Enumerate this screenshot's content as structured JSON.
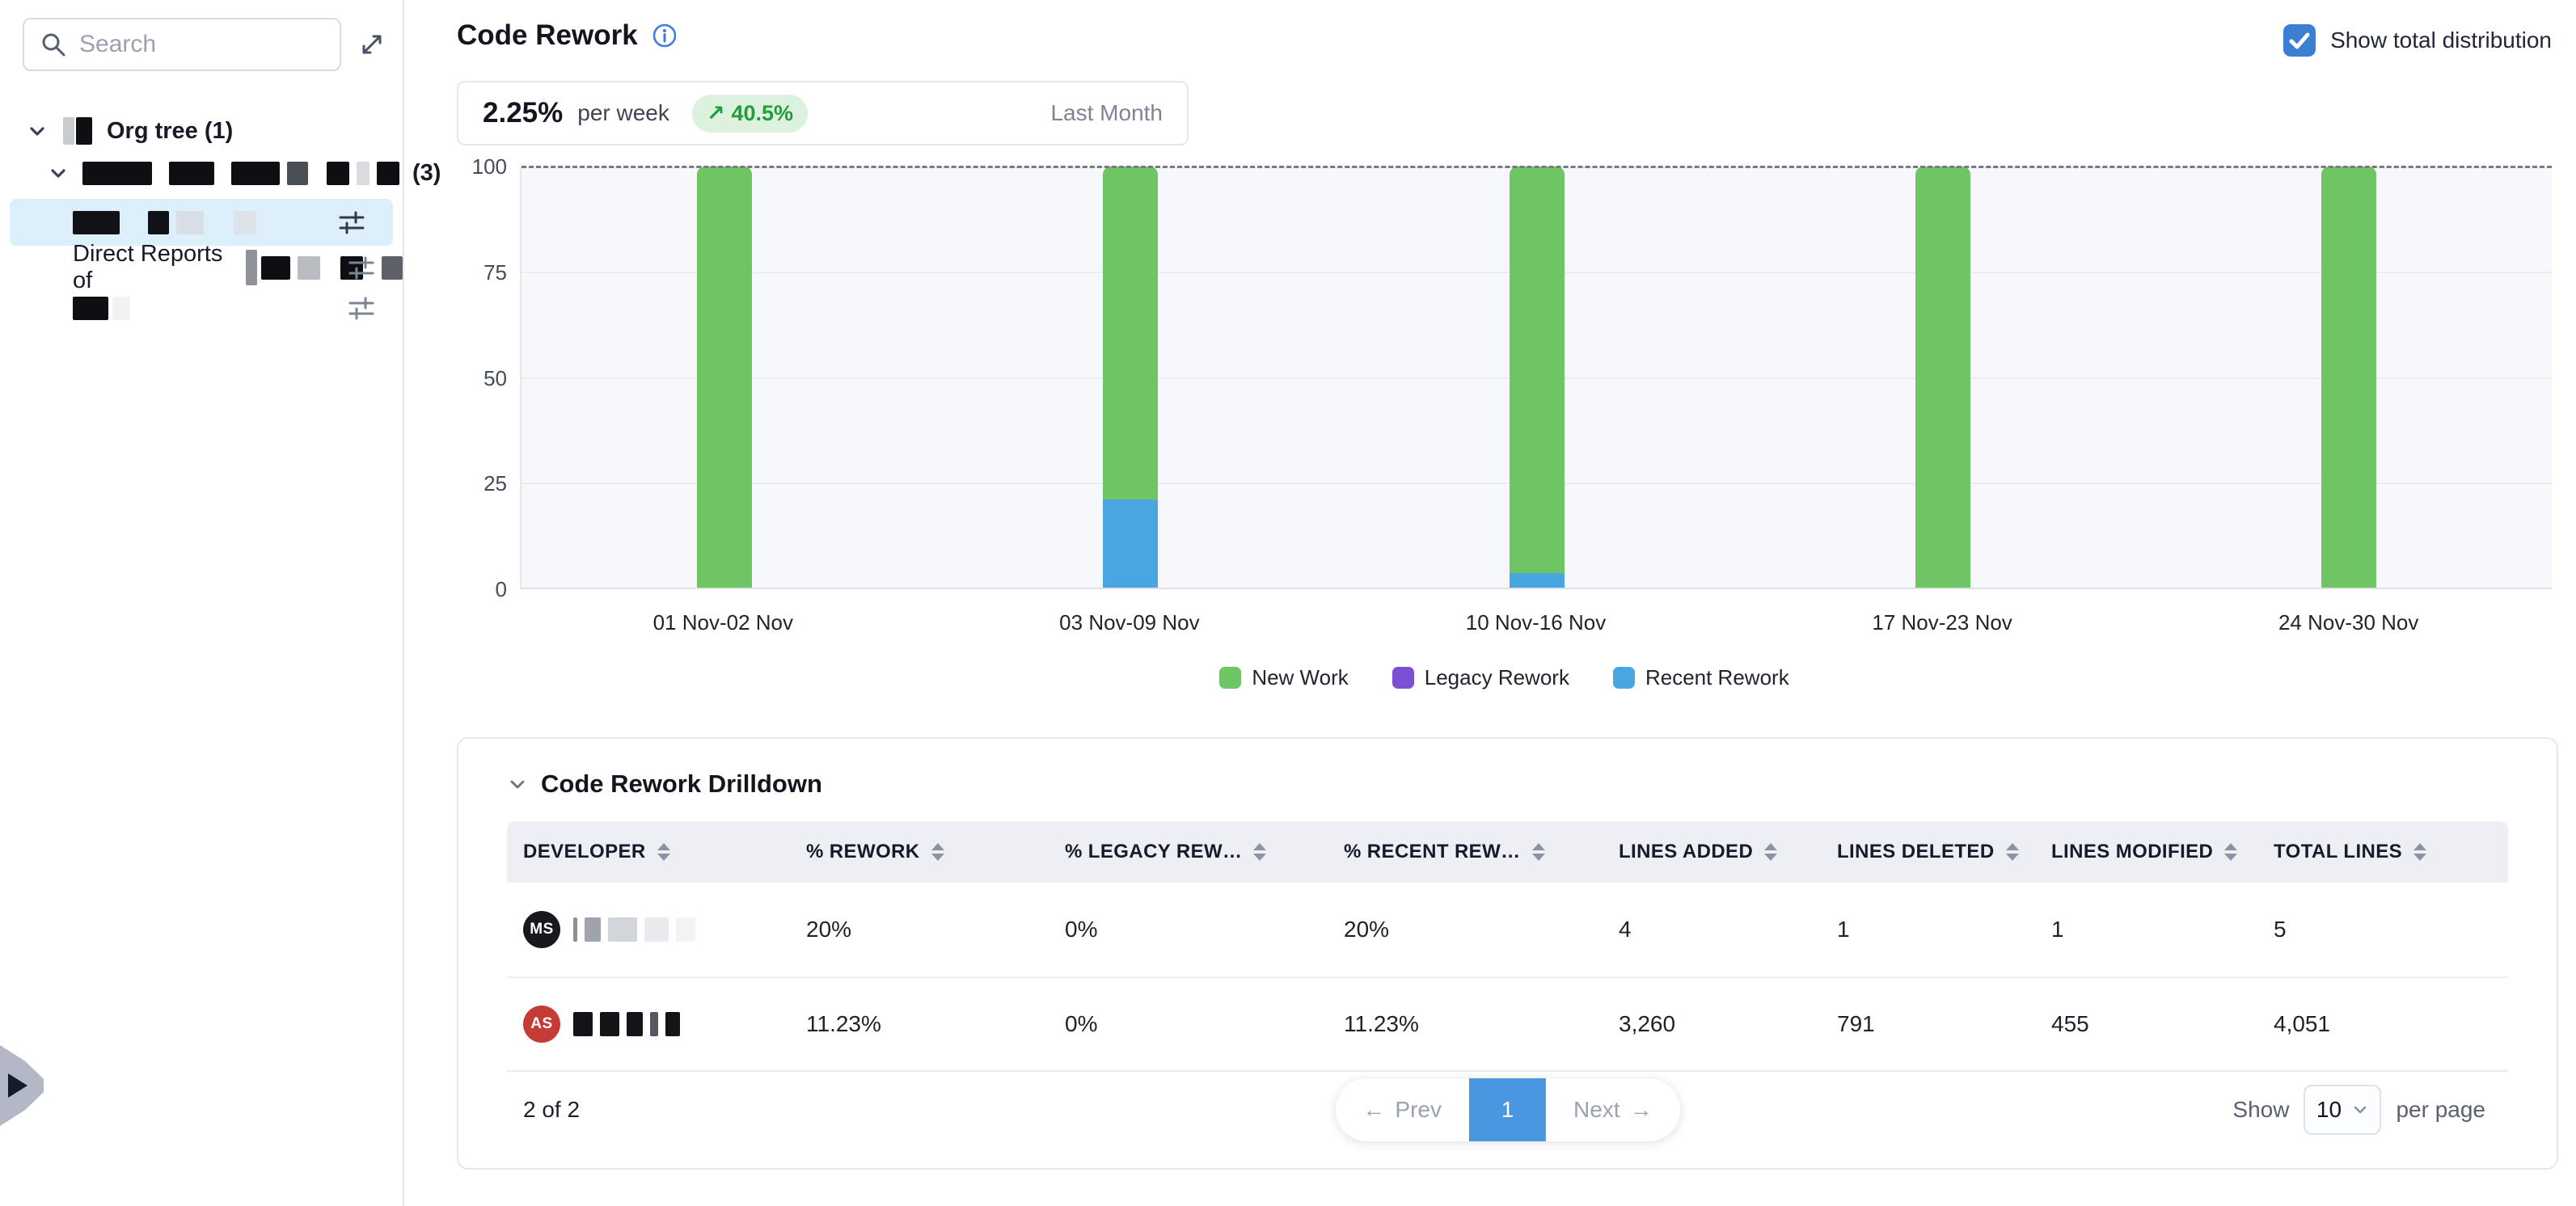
{
  "sidebar": {
    "search_placeholder": "Search",
    "tree": {
      "root_label": "Org tree (1)",
      "group_count": "(3)",
      "direct_reports_label": "Direct Reports of"
    }
  },
  "header": {
    "title": "Code Rework",
    "show_total_label": "Show total distribution"
  },
  "metric": {
    "value": "2.25%",
    "unit": "per week",
    "trend_arrow": "↗",
    "delta": "40.5%",
    "period": "Last Month"
  },
  "chart_data": {
    "type": "bar",
    "stacked": true,
    "title": "Code Rework",
    "categories": [
      "01 Nov-02 Nov",
      "03 Nov-09 Nov",
      "10 Nov-16 Nov",
      "17 Nov-23 Nov",
      "24 Nov-30 Nov"
    ],
    "series": [
      {
        "name": "New Work",
        "color": "#6fc464",
        "values": [
          100,
          79,
          96.5,
          100,
          100
        ]
      },
      {
        "name": "Legacy Rework",
        "color": "#7b50d2",
        "values": [
          0,
          0,
          0,
          0,
          0
        ]
      },
      {
        "name": "Recent Rework",
        "color": "#4aa6e0",
        "values": [
          0,
          21,
          3.5,
          0,
          0
        ]
      }
    ],
    "ylim": [
      0,
      100
    ],
    "yticks": [
      0,
      25,
      50,
      75,
      100
    ],
    "grid": true,
    "total_line": 100,
    "legend_position": "bottom"
  },
  "drilldown": {
    "title": "Code Rework Drilldown",
    "columns": [
      {
        "key": "developer",
        "label": "Developer"
      },
      {
        "key": "rework",
        "label": "% Rework"
      },
      {
        "key": "legacy-rework",
        "label": "% Legacy Rew…"
      },
      {
        "key": "recent-rework",
        "label": "% Recent Rew…"
      },
      {
        "key": "lines-added",
        "label": "Lines Added"
      },
      {
        "key": "lines-deleted",
        "label": "Lines Deleted"
      },
      {
        "key": "lines-modified",
        "label": "Lines Modified"
      },
      {
        "key": "total-lines",
        "label": "Total Lines"
      }
    ],
    "rows": [
      {
        "initials": "MS",
        "avatar_color": "#17191e",
        "name_redaction": "light",
        "cells": [
          "20%",
          "0%",
          "20%",
          "4",
          "1",
          "1",
          "5"
        ]
      },
      {
        "initials": "AS",
        "avatar_color": "#c43c35",
        "name_redaction": "dark",
        "cells": [
          "11.23%",
          "0%",
          "11.23%",
          "3,260",
          "791",
          "455",
          "4,051"
        ]
      }
    ],
    "pagination": {
      "count": "2 of 2",
      "prev_arrow": "←",
      "prev": "Prev",
      "page": "1",
      "next": "Next",
      "next_arrow": "→",
      "show": "Show",
      "page_size": "10",
      "per_page": "per page"
    }
  },
  "colors": {
    "new_work": "#6fc464",
    "legacy_rework": "#7b50d2",
    "recent_rework": "#4aa6e0",
    "checkbox_blue": "#3b7fd4",
    "active_page_blue": "#4a97e0",
    "badge_bg": "#dcf2de",
    "badge_text": "#259b3e",
    "selected_row_bg": "#ddeffb"
  },
  "icons": {
    "search": "magnifier",
    "expand": "diagonal-arrows",
    "filter": "sliders",
    "info": "circle-i",
    "check": "checkmark",
    "chevron_down": "⌄"
  }
}
